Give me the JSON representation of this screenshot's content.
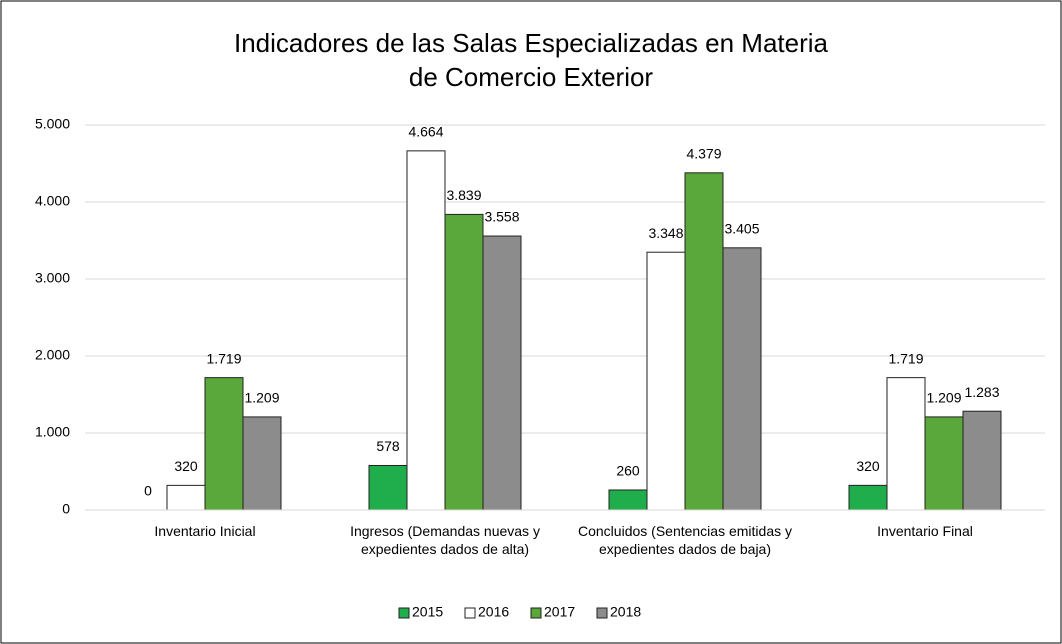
{
  "chart_data": {
    "type": "bar",
    "title": "Indicadores de las Salas Especializadas en Materia de Comercio Exterior",
    "categories": [
      "Inventario Inicial",
      "Ingresos (Demandas nuevas y expedientes dados de alta)",
      "Concluidos (Sentencias emitidas y expedientes dados de baja)",
      "Inventario Final"
    ],
    "series": [
      {
        "name": "2015",
        "color": "#1fae4b",
        "values": [
          0,
          578,
          260,
          320
        ],
        "value_labels": [
          "0",
          "578",
          "260",
          "320"
        ]
      },
      {
        "name": "2016",
        "color": "#ffffff",
        "values": [
          320,
          4664,
          3348,
          1719
        ],
        "value_labels": [
          "320",
          "4.664",
          "3.348",
          "1.719"
        ]
      },
      {
        "name": "2017",
        "color": "#5aa73c",
        "values": [
          1719,
          3839,
          4379,
          1209
        ],
        "value_labels": [
          "1.719",
          "3.839",
          "4.379",
          "1.209"
        ]
      },
      {
        "name": "2018",
        "color": "#8c8c8c",
        "values": [
          1209,
          3558,
          3405,
          1283
        ],
        "value_labels": [
          "1.209",
          "3.558",
          "3.405",
          "1.283"
        ]
      }
    ],
    "ylim": [
      0,
      5000
    ],
    "yticks": [
      0,
      {
        "value": 1000,
        "label": "1.000"
      },
      {
        "value": 2000,
        "label": "2.000"
      },
      {
        "value": 3000,
        "label": "3.000"
      },
      {
        "value": 4000,
        "label": "4.000"
      },
      {
        "value": 5000,
        "label": "5.000"
      }
    ],
    "grid": true,
    "legend": "bottom"
  }
}
